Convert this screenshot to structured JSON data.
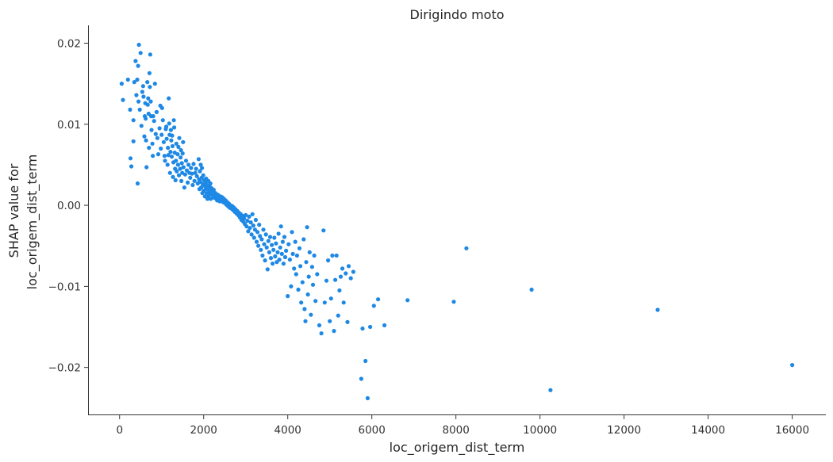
{
  "chart_data": {
    "type": "scatter",
    "title": "Dirigindo moto",
    "xlabel": "loc_origem_dist_term",
    "ylabel_lines": [
      "SHAP value for",
      "loc_origem_dist_term"
    ],
    "xlim": [
      -750,
      16800
    ],
    "ylim": [
      -0.0259,
      0.0222
    ],
    "xticks": [
      0,
      2000,
      4000,
      6000,
      8000,
      10000,
      12000,
      14000,
      16000
    ],
    "xtick_labels": [
      "0",
      "2000",
      "4000",
      "6000",
      "8000",
      "10000",
      "12000",
      "14000",
      "16000"
    ],
    "yticks": [
      0.02,
      0.01,
      0.0,
      -0.01,
      -0.02
    ],
    "ytick_labels": [
      "0.02",
      "0.01",
      "0.00",
      "−0.01",
      "−0.02"
    ],
    "grid": false,
    "point_color": "#1e88e5",
    "points": [
      [
        50,
        0.015
      ],
      [
        80,
        0.013
      ],
      [
        200,
        0.0155
      ],
      [
        250,
        0.0118
      ],
      [
        260,
        0.0058
      ],
      [
        280,
        0.0048
      ],
      [
        330,
        0.0079
      ],
      [
        330,
        0.0105
      ],
      [
        350,
        0.0152
      ],
      [
        380,
        0.0178
      ],
      [
        400,
        0.0136
      ],
      [
        420,
        0.0155
      ],
      [
        430,
        0.0027
      ],
      [
        440,
        0.0172
      ],
      [
        450,
        0.0128
      ],
      [
        460,
        0.0198
      ],
      [
        480,
        0.0118
      ],
      [
        500,
        0.0188
      ],
      [
        520,
        0.0098
      ],
      [
        540,
        0.014
      ],
      [
        560,
        0.0147
      ],
      [
        570,
        0.0134
      ],
      [
        590,
        0.0085
      ],
      [
        600,
        0.011
      ],
      [
        610,
        0.0126
      ],
      [
        620,
        0.0107
      ],
      [
        630,
        0.008
      ],
      [
        640,
        0.0047
      ],
      [
        660,
        0.0152
      ],
      [
        670,
        0.0124
      ],
      [
        680,
        0.0132
      ],
      [
        690,
        0.0113
      ],
      [
        700,
        0.0071
      ],
      [
        710,
        0.0163
      ],
      [
        720,
        0.0146
      ],
      [
        730,
        0.0186
      ],
      [
        740,
        0.0128
      ],
      [
        750,
        0.011
      ],
      [
        760,
        0.0093
      ],
      [
        780,
        0.0076
      ],
      [
        790,
        0.0061
      ],
      [
        800,
        0.011
      ],
      [
        820,
        0.0104
      ],
      [
        840,
        0.015
      ],
      [
        860,
        0.0088
      ],
      [
        880,
        0.0115
      ],
      [
        900,
        0.0083
      ],
      [
        920,
        0.0063
      ],
      [
        950,
        0.0095
      ],
      [
        970,
        0.0123
      ],
      [
        980,
        0.007
      ],
      [
        1000,
        0.0087
      ],
      [
        1010,
        0.012
      ],
      [
        1030,
        0.0105
      ],
      [
        1050,
        0.0078
      ],
      [
        1070,
        0.0061
      ],
      [
        1080,
        0.0055
      ],
      [
        1100,
        0.0094
      ],
      [
        1110,
        0.0097
      ],
      [
        1120,
        0.0082
      ],
      [
        1140,
        0.005
      ],
      [
        1150,
        0.0071
      ],
      [
        1160,
        0.0062
      ],
      [
        1170,
        0.0132
      ],
      [
        1180,
        0.0101
      ],
      [
        1190,
        0.0087
      ],
      [
        1200,
        0.004
      ],
      [
        1210,
        0.0066
      ],
      [
        1220,
        0.0093
      ],
      [
        1230,
        0.008
      ],
      [
        1240,
        0.006
      ],
      [
        1250,
        0.0086
      ],
      [
        1260,
        0.0073
      ],
      [
        1270,
        0.0035
      ],
      [
        1280,
        0.0053
      ],
      [
        1290,
        0.0105
      ],
      [
        1300,
        0.0096
      ],
      [
        1310,
        0.0065
      ],
      [
        1320,
        0.0045
      ],
      [
        1330,
        0.0031
      ],
      [
        1340,
        0.0055
      ],
      [
        1350,
        0.0076
      ],
      [
        1360,
        0.0042
      ],
      [
        1380,
        0.0063
      ],
      [
        1390,
        0.005
      ],
      [
        1400,
        0.0072
      ],
      [
        1410,
        0.0037
      ],
      [
        1420,
        0.0083
      ],
      [
        1440,
        0.0045
      ],
      [
        1450,
        0.0059
      ],
      [
        1460,
        0.0068
      ],
      [
        1470,
        0.003
      ],
      [
        1480,
        0.0052
      ],
      [
        1490,
        0.004
      ],
      [
        1500,
        0.0064
      ],
      [
        1510,
        0.0078
      ],
      [
        1520,
        0.0047
      ],
      [
        1540,
        0.0022
      ],
      [
        1560,
        0.0038
      ],
      [
        1580,
        0.0055
      ],
      [
        1600,
        0.0043
      ],
      [
        1620,
        0.0028
      ],
      [
        1640,
        0.005
      ],
      [
        1660,
        0.004
      ],
      [
        1680,
        0.0034
      ],
      [
        1700,
        0.0046
      ],
      [
        1720,
        0.0039
      ],
      [
        1740,
        0.0025
      ],
      [
        1760,
        0.0051
      ],
      [
        1780,
        0.003
      ],
      [
        1800,
        0.004
      ],
      [
        1820,
        0.0045
      ],
      [
        1840,
        0.0036
      ],
      [
        1860,
        0.0027
      ],
      [
        1880,
        0.0057
      ],
      [
        1890,
        0.0032
      ],
      [
        1900,
        0.002
      ],
      [
        1910,
        0.0042
      ],
      [
        1920,
        0.0029
      ],
      [
        1930,
        0.005
      ],
      [
        1940,
        0.0022
      ],
      [
        1950,
        0.0034
      ],
      [
        1960,
        0.0046
      ],
      [
        1970,
        0.0015
      ],
      [
        1980,
        0.0026
      ],
      [
        1990,
        0.0037
      ],
      [
        2000,
        0.0018
      ],
      [
        2010,
        0.0031
      ],
      [
        2020,
        0.0024
      ],
      [
        2030,
        0.0011
      ],
      [
        2040,
        0.0028
      ],
      [
        2050,
        0.002
      ],
      [
        2060,
        0.0033
      ],
      [
        2070,
        0.0015
      ],
      [
        2080,
        0.0025
      ],
      [
        2090,
        0.0008
      ],
      [
        2100,
        0.0021
      ],
      [
        2110,
        0.003
      ],
      [
        2120,
        0.0012
      ],
      [
        2130,
        0.0018
      ],
      [
        2140,
        0.0024
      ],
      [
        2150,
        0.0016
      ],
      [
        2160,
        0.0027
      ],
      [
        2170,
        0.0008
      ],
      [
        2180,
        0.0014
      ],
      [
        2190,
        0.0021
      ],
      [
        2200,
        0.0017
      ],
      [
        2220,
        0.0012
      ],
      [
        2240,
        0.0019
      ],
      [
        2260,
        0.0009
      ],
      [
        2280,
        0.0015
      ],
      [
        2300,
        0.0011
      ],
      [
        2320,
        0.0006
      ],
      [
        2340,
        0.0013
      ],
      [
        2360,
        0.0009
      ],
      [
        2380,
        0.0005
      ],
      [
        2400,
        0.0011
      ],
      [
        2420,
        0.0007
      ],
      [
        2440,
        0.001
      ],
      [
        2460,
        0.0004
      ],
      [
        2480,
        0.0008
      ],
      [
        2500,
        0.0003
      ],
      [
        2520,
        0.0006
      ],
      [
        2540,
        0.0001
      ],
      [
        2560,
        0.0004
      ],
      [
        2580,
        -0.0001
      ],
      [
        2600,
        0.0002
      ],
      [
        2620,
        -0.0003
      ],
      [
        2640,
        0.0
      ],
      [
        2660,
        -0.0004
      ],
      [
        2680,
        -0.0001
      ],
      [
        2700,
        -0.0006
      ],
      [
        2720,
        -0.0003
      ],
      [
        2740,
        -0.0008
      ],
      [
        2760,
        -0.0005
      ],
      [
        2780,
        -0.001
      ],
      [
        2800,
        -0.0007
      ],
      [
        2820,
        -0.0012
      ],
      [
        2840,
        -0.0009
      ],
      [
        2860,
        -0.0015
      ],
      [
        2880,
        -0.0011
      ],
      [
        2900,
        -0.0018
      ],
      [
        2920,
        -0.0013
      ],
      [
        2940,
        -0.002
      ],
      [
        2960,
        -0.0016
      ],
      [
        2980,
        -0.0023
      ],
      [
        3000,
        -0.0012
      ],
      [
        3020,
        -0.0026
      ],
      [
        3040,
        -0.0019
      ],
      [
        3060,
        -0.0032
      ],
      [
        3080,
        -0.0014
      ],
      [
        3100,
        -0.0028
      ],
      [
        3120,
        -0.0021
      ],
      [
        3140,
        -0.0036
      ],
      [
        3160,
        -0.0011
      ],
      [
        3180,
        -0.0025
      ],
      [
        3200,
        -0.004
      ],
      [
        3220,
        -0.003
      ],
      [
        3240,
        -0.0018
      ],
      [
        3260,
        -0.0045
      ],
      [
        3280,
        -0.0033
      ],
      [
        3300,
        -0.005
      ],
      [
        3320,
        -0.0024
      ],
      [
        3340,
        -0.0038
      ],
      [
        3360,
        -0.0055
      ],
      [
        3380,
        -0.0042
      ],
      [
        3400,
        -0.0062
      ],
      [
        3420,
        -0.003
      ],
      [
        3440,
        -0.0048
      ],
      [
        3460,
        -0.0068
      ],
      [
        3480,
        -0.0036
      ],
      [
        3500,
        -0.0052
      ],
      [
        3520,
        -0.0079
      ],
      [
        3540,
        -0.0044
      ],
      [
        3560,
        -0.0058
      ],
      [
        3580,
        -0.0039
      ],
      [
        3600,
        -0.0065
      ],
      [
        3620,
        -0.0049
      ],
      [
        3640,
        -0.0072
      ],
      [
        3660,
        -0.0055
      ],
      [
        3680,
        -0.004
      ],
      [
        3700,
        -0.0063
      ],
      [
        3720,
        -0.0047
      ],
      [
        3740,
        -0.007
      ],
      [
        3760,
        -0.0058
      ],
      [
        3780,
        -0.0035
      ],
      [
        3800,
        -0.0067
      ],
      [
        3820,
        -0.0052
      ],
      [
        3840,
        -0.0026
      ],
      [
        3860,
        -0.006
      ],
      [
        3880,
        -0.0045
      ],
      [
        3900,
        -0.0072
      ],
      [
        3920,
        -0.0039
      ],
      [
        3940,
        -0.0064
      ],
      [
        3960,
        -0.0056
      ],
      [
        4000,
        -0.0112
      ],
      [
        4020,
        -0.0048
      ],
      [
        4050,
        -0.0067
      ],
      [
        4080,
        -0.01
      ],
      [
        4100,
        -0.0033
      ],
      [
        4120,
        -0.006
      ],
      [
        4150,
        -0.0078
      ],
      [
        4180,
        -0.0045
      ],
      [
        4200,
        -0.0085
      ],
      [
        4220,
        -0.0062
      ],
      [
        4250,
        -0.0104
      ],
      [
        4280,
        -0.0053
      ],
      [
        4300,
        -0.0075
      ],
      [
        4320,
        -0.012
      ],
      [
        4350,
        -0.0095
      ],
      [
        4380,
        -0.0042
      ],
      [
        4400,
        -0.0128
      ],
      [
        4420,
        -0.0143
      ],
      [
        4440,
        -0.007
      ],
      [
        4460,
        -0.0027
      ],
      [
        4480,
        -0.011
      ],
      [
        4500,
        -0.0088
      ],
      [
        4520,
        -0.0058
      ],
      [
        4550,
        -0.0135
      ],
      [
        4580,
        -0.0076
      ],
      [
        4600,
        -0.0098
      ],
      [
        4630,
        -0.0062
      ],
      [
        4660,
        -0.0118
      ],
      [
        4700,
        -0.0085
      ],
      [
        4750,
        -0.0148
      ],
      [
        4800,
        -0.0158
      ],
      [
        4850,
        -0.0031
      ],
      [
        4880,
        -0.012
      ],
      [
        4920,
        -0.0093
      ],
      [
        4960,
        -0.0068
      ],
      [
        5000,
        -0.0143
      ],
      [
        5030,
        -0.0115
      ],
      [
        5060,
        -0.0062
      ],
      [
        5100,
        -0.0155
      ],
      [
        5130,
        -0.0092
      ],
      [
        5160,
        -0.0062
      ],
      [
        5200,
        -0.0136
      ],
      [
        5230,
        -0.0105
      ],
      [
        5260,
        -0.0088
      ],
      [
        5300,
        -0.0078
      ],
      [
        5330,
        -0.012
      ],
      [
        5380,
        -0.0084
      ],
      [
        5420,
        -0.0144
      ],
      [
        5450,
        -0.0075
      ],
      [
        5500,
        -0.009
      ],
      [
        5560,
        -0.0082
      ],
      [
        5750,
        -0.0214
      ],
      [
        5780,
        -0.0152
      ],
      [
        5850,
        -0.0192
      ],
      [
        5900,
        -0.0238
      ],
      [
        5960,
        -0.015
      ],
      [
        6050,
        -0.0124
      ],
      [
        6150,
        -0.0116
      ],
      [
        6300,
        -0.0148
      ],
      [
        6850,
        -0.0117
      ],
      [
        7950,
        -0.0119
      ],
      [
        8250,
        -0.0053
      ],
      [
        9800,
        -0.0104
      ],
      [
        10250,
        -0.0228
      ],
      [
        12800,
        -0.0129
      ],
      [
        16000,
        -0.0197
      ]
    ]
  }
}
